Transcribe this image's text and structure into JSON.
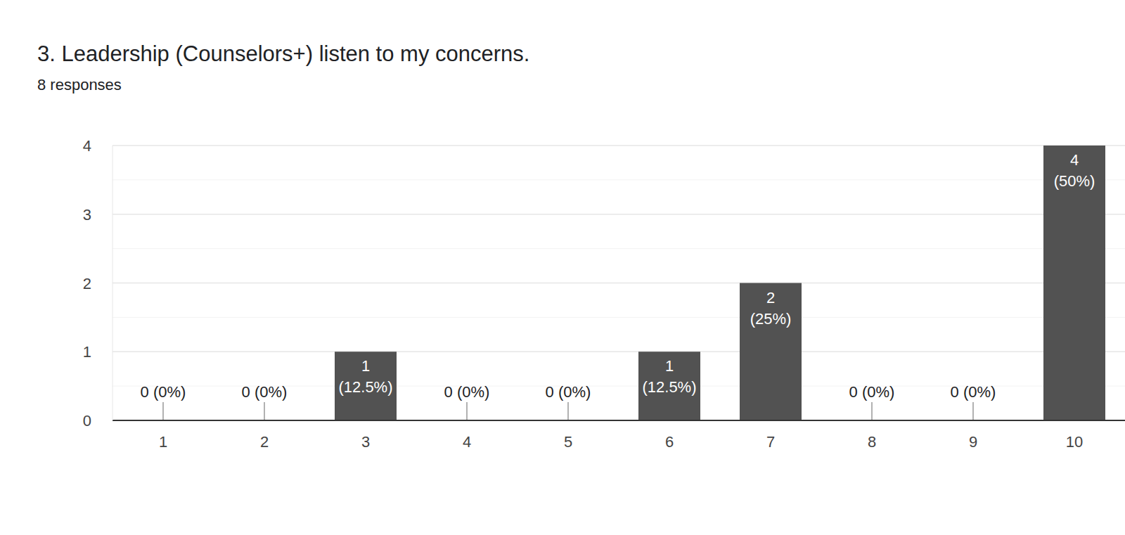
{
  "chart_data": {
    "type": "bar",
    "title": "3. Leadership (Counselors+) listen to my concerns.",
    "subtitle": "8 responses",
    "categories": [
      "1",
      "2",
      "3",
      "4",
      "5",
      "6",
      "7",
      "8",
      "9",
      "10"
    ],
    "values": [
      0,
      0,
      1,
      0,
      0,
      1,
      2,
      0,
      0,
      4
    ],
    "value_labels": [
      "0 (0%)",
      "0 (0%)",
      "1 (12.5%)",
      "0 (0%)",
      "0 (0%)",
      "1 (12.5%)",
      "2 (25%)",
      "0 (0%)",
      "0 (0%)",
      "4 (50%)"
    ],
    "data_labels": true,
    "color": "#525252",
    "ylim": [
      0,
      4
    ],
    "yticks": [
      0,
      1,
      2,
      3,
      4
    ],
    "grid": true
  }
}
